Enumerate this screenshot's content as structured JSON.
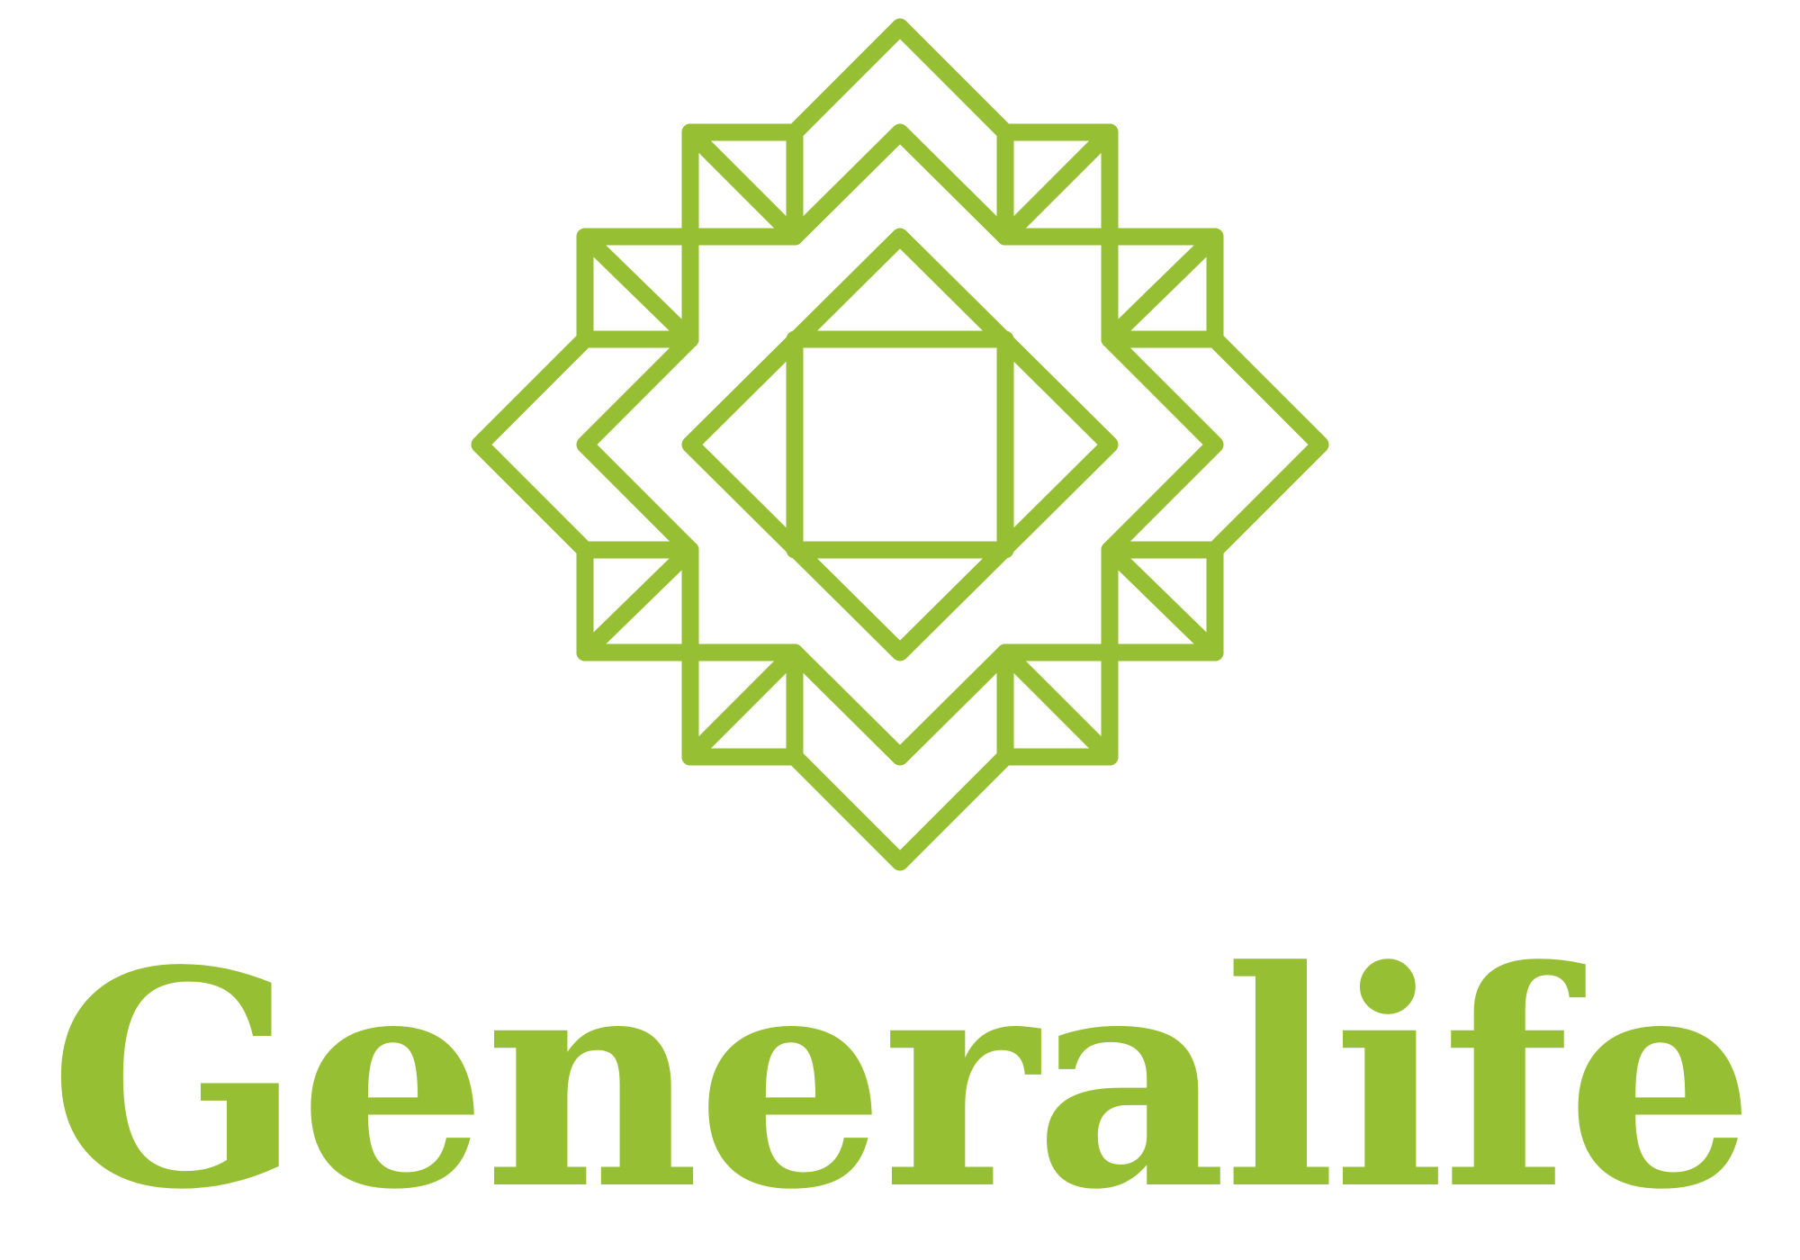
{
  "brand": {
    "name": "Generalife",
    "color": "#96bf33"
  },
  "emblem": {
    "icon": "geometric-star-emblem-icon"
  }
}
